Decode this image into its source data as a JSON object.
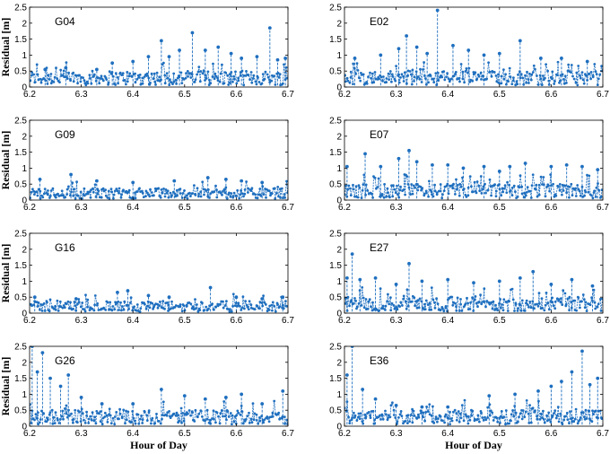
{
  "figure": {
    "xlabel": "Hour of Day",
    "ylabel": "Residual [m]",
    "series_color": "#1f6fbf"
  },
  "chart_data": [
    {
      "type": "scatter",
      "title": "G04",
      "xlim": [
        6.2,
        6.7
      ],
      "ylim": [
        0,
        2.5
      ],
      "xticks": [
        "6.2",
        "6.3",
        "6.4",
        "6.5",
        "6.6",
        "6.7"
      ],
      "yticks": [
        "0",
        "0.5",
        "1",
        "1.5",
        "2",
        "2.5"
      ],
      "spikes": [
        [
          6.23,
          0.55
        ],
        [
          6.27,
          0.6
        ],
        [
          6.33,
          0.55
        ],
        [
          6.36,
          0.75
        ],
        [
          6.4,
          0.8
        ],
        [
          6.43,
          0.95
        ],
        [
          6.455,
          1.45
        ],
        [
          6.47,
          0.95
        ],
        [
          6.49,
          1.15
        ],
        [
          6.515,
          1.7
        ],
        [
          6.54,
          1.15
        ],
        [
          6.565,
          1.25
        ],
        [
          6.59,
          1.05
        ],
        [
          6.61,
          0.9
        ],
        [
          6.64,
          0.95
        ],
        [
          6.665,
          1.85
        ],
        [
          6.68,
          0.85
        ],
        [
          6.695,
          0.9
        ]
      ]
    },
    {
      "type": "scatter",
      "title": "E02",
      "xlim": [
        6.2,
        6.7
      ],
      "ylim": [
        0,
        2.5
      ],
      "xticks": [
        "6.2",
        "6.3",
        "6.4",
        "6.5",
        "6.6",
        "6.7"
      ],
      "yticks": [
        "0",
        "0.5",
        "1",
        "1.5",
        "2",
        "2.5"
      ],
      "spikes": [
        [
          6.22,
          0.9
        ],
        [
          6.27,
          1.0
        ],
        [
          6.305,
          1.2
        ],
        [
          6.32,
          1.6
        ],
        [
          6.34,
          1.25
        ],
        [
          6.36,
          1.05
        ],
        [
          6.38,
          2.4
        ],
        [
          6.41,
          1.3
        ],
        [
          6.44,
          1.15
        ],
        [
          6.47,
          1.0
        ],
        [
          6.5,
          1.05
        ],
        [
          6.54,
          1.45
        ],
        [
          6.58,
          0.9
        ],
        [
          6.62,
          0.9
        ],
        [
          6.67,
          0.8
        ]
      ]
    },
    {
      "type": "scatter",
      "title": "G09",
      "xlim": [
        6.2,
        6.7
      ],
      "ylim": [
        0,
        2.5
      ],
      "xticks": [
        "6.2",
        "6.3",
        "6.4",
        "6.5",
        "6.6",
        "6.7"
      ],
      "yticks": [
        "0",
        "0.5",
        "1",
        "1.5",
        "2",
        "2.5"
      ],
      "spikes": [
        [
          6.22,
          0.65
        ],
        [
          6.28,
          0.8
        ],
        [
          6.33,
          0.6
        ],
        [
          6.4,
          0.55
        ],
        [
          6.48,
          0.6
        ],
        [
          6.545,
          0.7
        ],
        [
          6.58,
          0.65
        ],
        [
          6.61,
          0.6
        ],
        [
          6.65,
          0.55
        ]
      ]
    },
    {
      "type": "scatter",
      "title": "E07",
      "xlim": [
        6.2,
        6.7
      ],
      "ylim": [
        0,
        2.5
      ],
      "xticks": [
        "6.2",
        "6.3",
        "6.4",
        "6.5",
        "6.6",
        "6.7"
      ],
      "yticks": [
        "0",
        "0.5",
        "1",
        "1.5",
        "2",
        "2.5"
      ],
      "spikes": [
        [
          6.205,
          1.05
        ],
        [
          6.24,
          1.45
        ],
        [
          6.27,
          1.05
        ],
        [
          6.305,
          1.3
        ],
        [
          6.325,
          1.55
        ],
        [
          6.34,
          1.2
        ],
        [
          6.37,
          1.1
        ],
        [
          6.4,
          1.1
        ],
        [
          6.43,
          1.0
        ],
        [
          6.47,
          1.05
        ],
        [
          6.5,
          0.9
        ],
        [
          6.52,
          1.05
        ],
        [
          6.55,
          1.15
        ],
        [
          6.6,
          1.05
        ],
        [
          6.63,
          1.1
        ],
        [
          6.66,
          1.05
        ],
        [
          6.69,
          0.95
        ]
      ]
    },
    {
      "type": "scatter",
      "title": "G16",
      "xlim": [
        6.2,
        6.7
      ],
      "ylim": [
        0,
        2.5
      ],
      "xticks": [
        "6.2",
        "6.3",
        "6.4",
        "6.5",
        "6.6",
        "6.7"
      ],
      "yticks": [
        "0",
        "0.5",
        "1",
        "1.5",
        "2",
        "2.5"
      ],
      "spikes": [
        [
          6.21,
          0.5
        ],
        [
          6.29,
          0.45
        ],
        [
          6.37,
          0.65
        ],
        [
          6.39,
          0.7
        ],
        [
          6.43,
          0.55
        ],
        [
          6.47,
          0.5
        ],
        [
          6.55,
          0.8
        ],
        [
          6.6,
          0.5
        ],
        [
          6.65,
          0.45
        ],
        [
          6.69,
          0.5
        ]
      ]
    },
    {
      "type": "scatter",
      "title": "E27",
      "xlim": [
        6.2,
        6.7
      ],
      "ylim": [
        0,
        2.5
      ],
      "xticks": [
        "6.2",
        "6.3",
        "6.4",
        "6.5",
        "6.6",
        "6.7"
      ],
      "yticks": [
        "0",
        "0.5",
        "1",
        "1.5",
        "2",
        "2.5"
      ],
      "spikes": [
        [
          6.205,
          1.1
        ],
        [
          6.215,
          1.85
        ],
        [
          6.23,
          1.05
        ],
        [
          6.26,
          1.1
        ],
        [
          6.3,
          0.9
        ],
        [
          6.325,
          1.55
        ],
        [
          6.35,
          1.0
        ],
        [
          6.4,
          1.05
        ],
        [
          6.45,
          0.95
        ],
        [
          6.5,
          1.0
        ],
        [
          6.54,
          1.1
        ],
        [
          6.565,
          1.3
        ],
        [
          6.6,
          0.9
        ],
        [
          6.64,
          1.05
        ],
        [
          6.68,
          0.85
        ]
      ]
    },
    {
      "type": "scatter",
      "title": "G26",
      "xlim": [
        6.2,
        6.7
      ],
      "ylim": [
        0,
        2.5
      ],
      "xticks": [
        "6.2",
        "6.3",
        "6.4",
        "6.5",
        "6.6",
        "6.7"
      ],
      "yticks": [
        "0",
        "0.5",
        "1",
        "1.5",
        "2",
        "2.5"
      ],
      "spikes": [
        [
          6.205,
          2.5
        ],
        [
          6.215,
          1.7
        ],
        [
          6.225,
          2.3
        ],
        [
          6.24,
          1.5
        ],
        [
          6.26,
          1.25
        ],
        [
          6.275,
          1.6
        ],
        [
          6.3,
          0.9
        ],
        [
          6.34,
          0.7
        ],
        [
          6.4,
          0.7
        ],
        [
          6.455,
          1.15
        ],
        [
          6.5,
          0.95
        ],
        [
          6.54,
          0.85
        ],
        [
          6.58,
          0.9
        ],
        [
          6.61,
          1.0
        ],
        [
          6.65,
          0.7
        ],
        [
          6.69,
          1.1
        ]
      ]
    },
    {
      "type": "scatter",
      "title": "E36",
      "xlim": [
        6.2,
        6.7
      ],
      "ylim": [
        0,
        2.5
      ],
      "xticks": [
        "6.2",
        "6.3",
        "6.4",
        "6.5",
        "6.6",
        "6.7"
      ],
      "yticks": [
        "0",
        "0.5",
        "1",
        "1.5",
        "2",
        "2.5"
      ],
      "spikes": [
        [
          6.205,
          1.6
        ],
        [
          6.215,
          2.5
        ],
        [
          6.235,
          1.15
        ],
        [
          6.26,
          0.85
        ],
        [
          6.3,
          0.65
        ],
        [
          6.35,
          0.6
        ],
        [
          6.4,
          0.6
        ],
        [
          6.48,
          0.95
        ],
        [
          6.53,
          1.0
        ],
        [
          6.575,
          1.1
        ],
        [
          6.6,
          1.25
        ],
        [
          6.62,
          1.4
        ],
        [
          6.64,
          1.7
        ],
        [
          6.66,
          2.35
        ],
        [
          6.675,
          1.3
        ],
        [
          6.69,
          1.5
        ]
      ]
    }
  ]
}
